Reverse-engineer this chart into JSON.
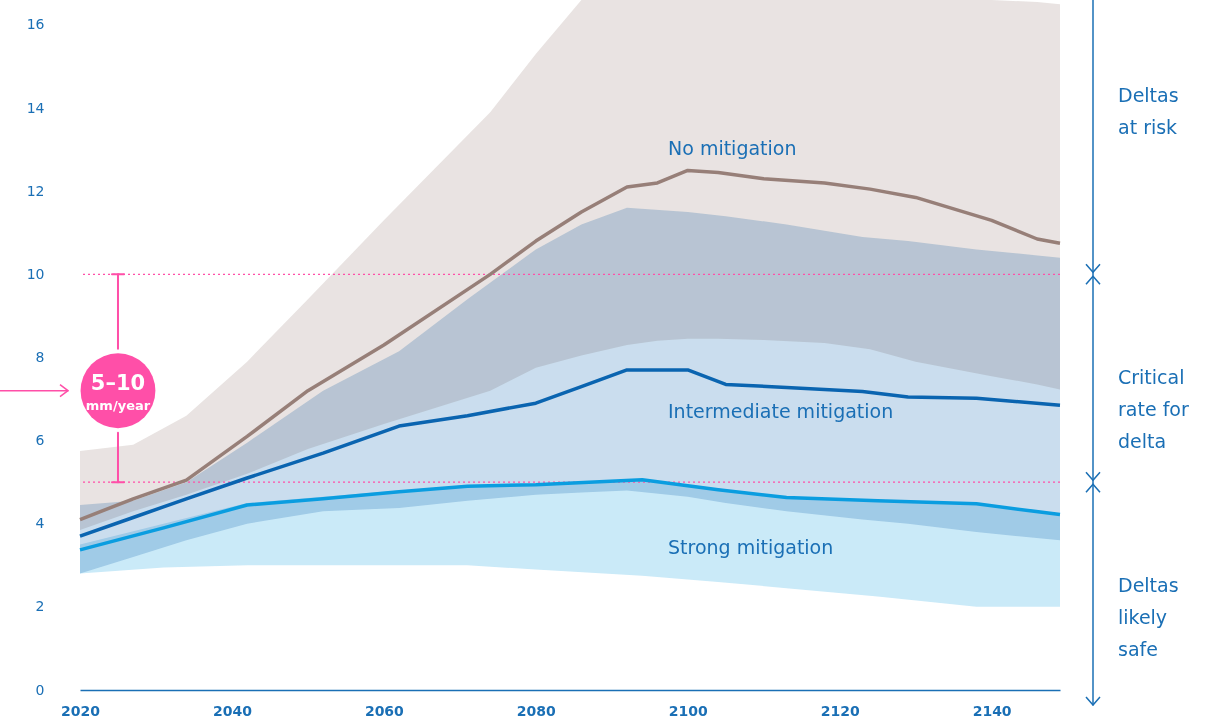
{
  "chart_data": {
    "type": "line",
    "xlim": [
      2020,
      2149
    ],
    "ylim": [
      0,
      16.6
    ],
    "xticks": [
      2020,
      2040,
      2060,
      2080,
      2100,
      2120,
      2140
    ],
    "yticks": [
      0,
      2,
      4,
      6,
      8,
      10,
      12,
      14,
      16
    ],
    "series": [
      {
        "name": "No mitigation",
        "color": "#977f78",
        "x": [
          2020,
          2027,
          2034,
          2042,
          2050,
          2060,
          2074,
          2080,
          2086,
          2092,
          2096,
          2100,
          2104,
          2110,
          2118,
          2124,
          2130,
          2140,
          2146,
          2149
        ],
        "values": [
          4.1,
          4.6,
          5.05,
          6.1,
          7.2,
          8.3,
          10.0,
          10.8,
          11.5,
          12.1,
          12.2,
          12.5,
          12.45,
          12.3,
          12.2,
          12.05,
          11.85,
          11.3,
          10.85,
          10.75
        ],
        "lower": [
          3.85,
          4.3,
          4.7,
          5.2,
          5.8,
          6.4,
          7.2,
          7.75,
          8.05,
          8.3,
          8.4,
          8.45,
          8.45,
          8.42,
          8.35,
          8.2,
          7.9,
          7.55,
          7.35,
          7.23
        ],
        "upper": [
          5.75,
          5.9,
          6.6,
          7.9,
          9.4,
          11.3,
          13.9,
          15.3,
          16.6,
          16.6,
          16.6,
          16.6,
          16.6,
          16.6,
          16.6,
          16.6,
          16.6,
          16.6,
          16.55,
          16.5
        ]
      },
      {
        "name": "Intermediate mitigation",
        "color": "#0a64b0",
        "x": [
          2020,
          2027,
          2034,
          2042,
          2052,
          2062,
          2071,
          2080,
          2086,
          2092,
          2100,
          2105,
          2113,
          2123,
          2129,
          2138,
          2149
        ],
        "values": [
          3.7,
          4.15,
          4.6,
          5.1,
          5.7,
          6.35,
          6.6,
          6.9,
          7.3,
          7.7,
          7.7,
          7.35,
          7.28,
          7.18,
          7.05,
          7.02,
          6.85
        ],
        "lower": [
          2.8,
          3.2,
          3.6,
          4.0,
          4.3,
          4.38,
          4.55,
          4.7,
          4.75,
          4.8,
          4.65,
          4.5,
          4.3,
          4.1,
          4.0,
          3.8,
          3.6
        ],
        "upper": [
          4.45,
          4.55,
          5.0,
          5.95,
          7.2,
          8.15,
          9.4,
          10.6,
          11.2,
          11.6,
          11.5,
          11.4,
          11.2,
          10.9,
          10.8,
          10.6,
          10.4
        ]
      },
      {
        "name": "Strong mitigation",
        "color": "#0a9de0",
        "x": [
          2020,
          2031,
          2042,
          2052,
          2062,
          2071,
          2080,
          2094,
          2104,
          2113,
          2125,
          2138,
          2149
        ],
        "values": [
          3.37,
          3.9,
          4.45,
          4.6,
          4.77,
          4.9,
          4.94,
          5.06,
          4.82,
          4.63,
          4.55,
          4.48,
          4.22
        ],
        "lower": [
          2.8,
          2.95,
          3.0,
          3.0,
          3.0,
          3.0,
          2.9,
          2.75,
          2.6,
          2.45,
          2.25,
          2.0,
          2.0
        ],
        "upper": [
          3.5,
          4.0,
          4.5,
          4.65,
          4.8,
          4.92,
          4.96,
          5.06,
          4.85,
          4.65,
          4.55,
          4.48,
          4.22
        ]
      }
    ],
    "ref_lines": [
      {
        "axis": "y",
        "value": 10,
        "color": "#ff4fa8",
        "line_style": "dotted"
      },
      {
        "axis": "y",
        "value": 5,
        "color": "#ff4fa8",
        "line_style": "dotted"
      }
    ],
    "annotations": [
      {
        "text": "5–10 mm/year",
        "x": 2025,
        "y": 10
      },
      "Deltas at risk",
      "Critical rate for delta",
      "Deltas likely safe"
    ]
  }
}
